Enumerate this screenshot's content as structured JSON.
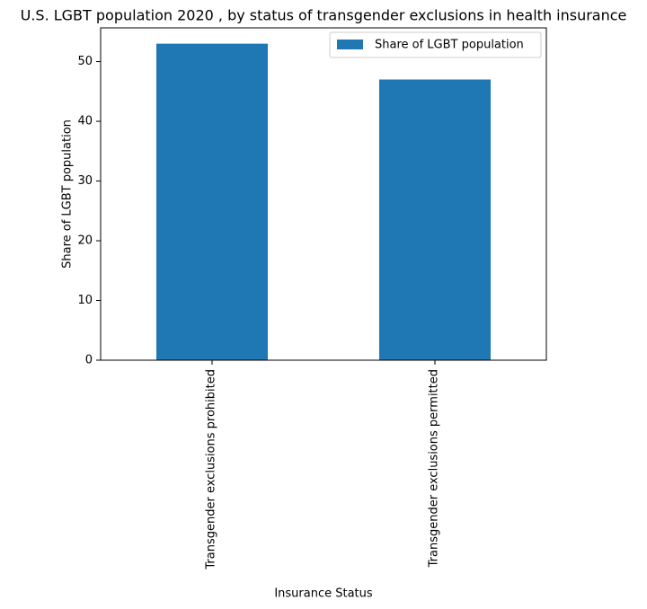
{
  "chart_data": {
    "type": "bar",
    "title": "U.S. LGBT population 2020 , by status of transgender exclusions in health insurance",
    "xlabel": "Insurance Status",
    "ylabel": "Share of LGBT population",
    "categories": [
      "Transgender exclusions prohibited",
      "Transgender exclusions permitted"
    ],
    "series": [
      {
        "name": "Share of LGBT population",
        "values": [
          53,
          47
        ],
        "color": "#1f77b4"
      }
    ],
    "ylim": [
      0,
      55.65
    ],
    "yticks": [
      "0",
      "10",
      "20",
      "30",
      "40",
      "50"
    ],
    "grid": false,
    "legend": "top-right"
  }
}
